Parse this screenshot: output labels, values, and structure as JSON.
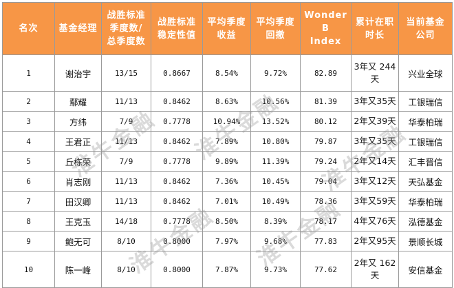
{
  "table": {
    "headers": [
      [
        "名次"
      ],
      [
        "基金经理"
      ],
      [
        "战胜标准",
        "季度数/",
        "总季度数"
      ],
      [
        "战胜标准",
        "稳定性值"
      ],
      [
        "平均季度",
        "收益"
      ],
      [
        "平均季度",
        "回撤"
      ],
      [
        "Wonder B",
        "Index"
      ],
      [
        "累计在职",
        "时长"
      ],
      [
        "当前基金",
        "公司"
      ]
    ],
    "rows": [
      {
        "rank": "1",
        "manager": "谢治宇",
        "wins": "13/15",
        "stability": "0.8667",
        "return": "8.54%",
        "drawdown": "9.72%",
        "index": "82.89",
        "tenure": [
          "3年又 244",
          "天"
        ],
        "company": "兴业全球"
      },
      {
        "rank": "2",
        "manager": "鄢耀",
        "wins": "11/13",
        "stability": "0.8462",
        "return": "8.63%",
        "drawdown": "10.56%",
        "index": "81.39",
        "tenure": [
          "3年又35天"
        ],
        "company": "工银瑞信"
      },
      {
        "rank": "3",
        "manager": "方纬",
        "wins": "7/9",
        "stability": "0.7778",
        "return": "10.94%",
        "drawdown": "13.52%",
        "index": "80.12",
        "tenure": [
          "2年又39天"
        ],
        "company": "华泰柏瑞"
      },
      {
        "rank": "4",
        "manager": "王君正",
        "wins": "11/13",
        "stability": "0.8462",
        "return": "7.89%",
        "drawdown": "10.80%",
        "index": "79.87",
        "tenure": [
          "3年又35天"
        ],
        "company": "工银瑞信"
      },
      {
        "rank": "5",
        "manager": "丘栋荣",
        "wins": "7/9",
        "stability": "0.7778",
        "return": "9.89%",
        "drawdown": "11.39%",
        "index": "79.24",
        "tenure": [
          "2年又14天"
        ],
        "company": "汇丰晋信"
      },
      {
        "rank": "6",
        "manager": "肖志刚",
        "wins": "11/13",
        "stability": "0.8462",
        "return": "7.36%",
        "drawdown": "10.45%",
        "index": "79.04",
        "tenure": [
          "3年又12天"
        ],
        "company": "天弘基金"
      },
      {
        "rank": "7",
        "manager": "田汉卿",
        "wins": "11/13",
        "stability": "0.8462",
        "return": "7.01%",
        "drawdown": "10.49%",
        "index": "78.36",
        "tenure": [
          "3年又59天"
        ],
        "company": "华泰柏瑞"
      },
      {
        "rank": "8",
        "manager": "王克玉",
        "wins": "14/18",
        "stability": "0.7778",
        "return": "8.50%",
        "drawdown": "8.39%",
        "index": "78.17",
        "tenure": [
          "4年又76天"
        ],
        "company": "泓德基金"
      },
      {
        "rank": "9",
        "manager": "鲍无可",
        "wins": "8/10",
        "stability": "0.8000",
        "return": "7.97%",
        "drawdown": "9.68%",
        "index": "77.83",
        "tenure": [
          "2年又95天"
        ],
        "company": "景顺长城"
      },
      {
        "rank": "10",
        "manager": "陈一峰",
        "wins": "8/10",
        "stability": "0.8000",
        "return": "7.87%",
        "drawdown": "9.73%",
        "index": "77.62",
        "tenure": [
          "2年又 162",
          "天"
        ],
        "company": "安信基金"
      }
    ]
  },
  "watermark": {
    "text": "淮牛金融",
    "color": "#969696"
  },
  "colors": {
    "header_bg": "#f79646",
    "header_text": "#ffffff",
    "border": "#9a9a9a"
  }
}
